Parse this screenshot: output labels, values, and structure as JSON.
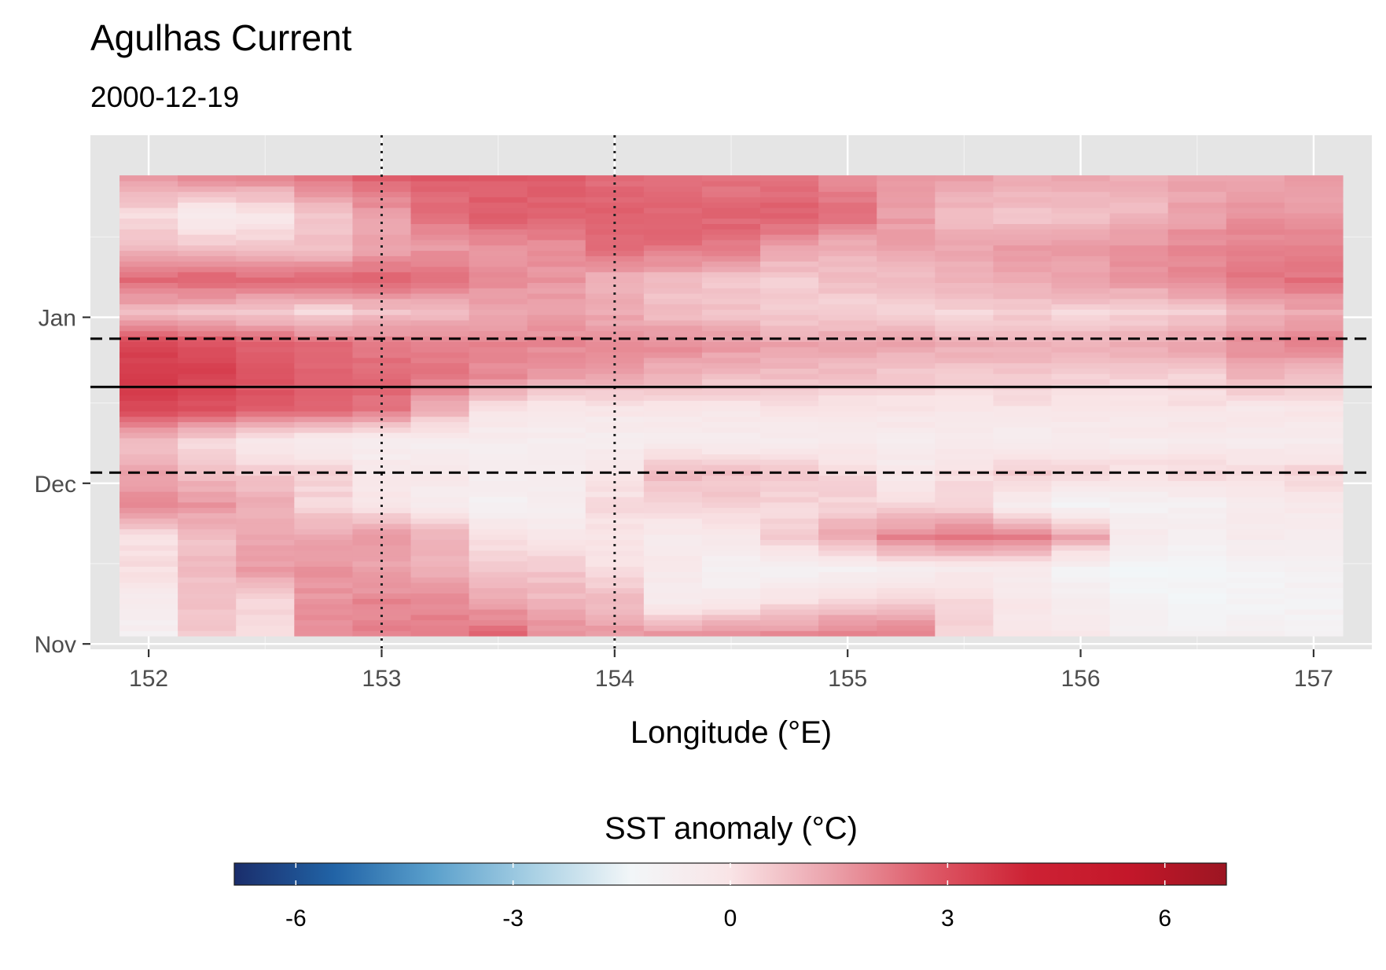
{
  "chart_data": {
    "type": "heatmap",
    "title": "Agulhas Current",
    "subtitle": "2000-12-19",
    "xlabel": "Longitude (°E)",
    "ylabel": "",
    "xlim": [
      151.75,
      157.25
    ],
    "x_ticks": [
      152,
      153,
      154,
      155,
      156,
      157
    ],
    "x_tick_labels": [
      "152",
      "153",
      "154",
      "155",
      "156",
      "157"
    ],
    "y_ticks": [
      {
        "date": "2000-11-01",
        "label": "Nov"
      },
      {
        "date": "2000-12-01",
        "label": "Dec"
      },
      {
        "date": "2001-01-01",
        "label": "Jan"
      }
    ],
    "ylim_dates": [
      "2000-10-31",
      "2001-02-04"
    ],
    "x": [
      152.0,
      152.25,
      152.5,
      152.75,
      153.0,
      153.25,
      153.5,
      153.75,
      154.0,
      154.25,
      154.5,
      154.75,
      155.0,
      155.25,
      155.5,
      155.75,
      156.0,
      156.25,
      156.5,
      156.75,
      157.0
    ],
    "time_start": "2000-11-03",
    "time_end": "2001-01-27",
    "band_values": [
      {
        "t": "2000-11-03",
        "v": [
          -0.8,
          0.6,
          0.3,
          1.8,
          2.0,
          2.2,
          2.4,
          1.8,
          1.5,
          1.5,
          1.6,
          1.8,
          2.0,
          2.0,
          0.3,
          -0.1,
          -0.4,
          -0.9,
          -1.0,
          -0.9,
          -0.9
        ]
      },
      {
        "t": "2000-11-09",
        "v": [
          -0.5,
          0.7,
          0.2,
          1.6,
          1.9,
          1.8,
          1.4,
          1.0,
          0.9,
          -0.5,
          -0.3,
          0.0,
          0.4,
          0.5,
          0.3,
          -0.2,
          -0.6,
          -1.1,
          -1.2,
          -1.1,
          -1.0
        ]
      },
      {
        "t": "2000-11-15",
        "v": [
          0.1,
          0.9,
          1.5,
          1.7,
          1.4,
          1.0,
          0.5,
          0.6,
          0.2,
          -0.4,
          -1.0,
          -1.0,
          -0.8,
          -0.6,
          -0.4,
          -0.5,
          -1.1,
          -1.4,
          -1.3,
          -1.1,
          -0.9
        ]
      },
      {
        "t": "2000-11-21",
        "v": [
          0.0,
          0.7,
          1.2,
          1.4,
          1.6,
          1.1,
          0.0,
          -0.3,
          -0.2,
          -0.4,
          -0.3,
          0.5,
          1.3,
          2.0,
          2.3,
          2.0,
          1.3,
          -0.4,
          -0.7,
          -0.5,
          -0.5
        ]
      },
      {
        "t": "2000-11-27",
        "v": [
          2.0,
          1.6,
          1.2,
          0.3,
          -0.2,
          -0.6,
          -0.9,
          -0.7,
          0.2,
          0.3,
          0.4,
          0.3,
          0.4,
          0.3,
          0.3,
          -0.6,
          -1.1,
          -1.0,
          -0.9,
          -0.6,
          -0.4
        ]
      },
      {
        "t": "2000-12-03",
        "v": [
          1.3,
          0.8,
          0.6,
          0.4,
          -0.3,
          -0.4,
          -0.6,
          -0.5,
          -0.2,
          0.9,
          0.8,
          0.6,
          0.3,
          -0.3,
          0.2,
          0.5,
          0.3,
          0.2,
          0.3,
          0.1,
          0.4
        ]
      },
      {
        "t": "2000-12-09",
        "v": [
          0.7,
          0.2,
          -0.4,
          -0.6,
          -0.7,
          -0.7,
          -0.7,
          -0.7,
          -0.6,
          -0.6,
          -0.7,
          -0.6,
          -0.5,
          -0.5,
          -0.5,
          -0.6,
          -0.5,
          -0.5,
          -0.5,
          -0.5,
          -0.5
        ]
      },
      {
        "t": "2000-12-15",
        "v": [
          3.2,
          3.0,
          2.8,
          2.7,
          2.3,
          1.2,
          0.0,
          -0.2,
          -0.2,
          -0.2,
          -0.1,
          -0.1,
          -0.1,
          -0.1,
          -0.1,
          -0.1,
          -0.1,
          -0.2,
          0.0,
          -0.2,
          -0.1
        ]
      },
      {
        "t": "2000-12-21",
        "v": [
          3.6,
          3.3,
          2.8,
          2.6,
          2.5,
          2.2,
          1.8,
          1.5,
          1.3,
          1.0,
          0.8,
          0.8,
          0.7,
          0.6,
          0.5,
          0.6,
          0.5,
          0.4,
          0.4,
          1.0,
          0.8
        ]
      },
      {
        "t": "2000-12-27",
        "v": [
          3.2,
          3.0,
          2.7,
          2.4,
          2.2,
          2.0,
          1.9,
          1.9,
          1.8,
          1.8,
          1.6,
          1.4,
          1.4,
          1.3,
          1.2,
          1.2,
          1.1,
          1.2,
          1.4,
          1.8,
          2.0
        ]
      },
      {
        "t": "2001-01-02",
        "v": [
          0.9,
          0.6,
          0.4,
          0.2,
          0.6,
          0.9,
          1.2,
          1.4,
          1.2,
          0.8,
          0.7,
          0.4,
          0.4,
          0.4,
          0.3,
          0.4,
          0.3,
          0.3,
          0.5,
          0.9,
          1.2
        ]
      },
      {
        "t": "2001-01-08",
        "v": [
          2.5,
          2.6,
          2.5,
          2.5,
          2.6,
          2.2,
          1.8,
          1.6,
          1.0,
          0.8,
          0.6,
          0.5,
          0.7,
          0.8,
          1.1,
          1.3,
          1.4,
          1.6,
          1.9,
          2.2,
          2.3
        ]
      },
      {
        "t": "2001-01-14",
        "v": [
          1.0,
          0.8,
          0.6,
          0.7,
          1.3,
          1.6,
          1.6,
          1.7,
          2.5,
          2.3,
          2.1,
          1.4,
          1.1,
          1.3,
          1.3,
          1.5,
          1.5,
          1.7,
          1.9,
          2.0,
          2.0
        ]
      },
      {
        "t": "2001-01-20",
        "v": [
          0.2,
          -0.6,
          -0.3,
          0.6,
          1.4,
          2.2,
          2.7,
          2.7,
          2.7,
          2.6,
          2.6,
          2.7,
          2.3,
          1.5,
          0.8,
          0.6,
          0.7,
          0.9,
          1.4,
          1.7,
          1.6
        ]
      },
      {
        "t": "2001-01-27",
        "v": [
          1.6,
          1.8,
          1.8,
          2.2,
          2.6,
          2.7,
          2.7,
          2.6,
          2.4,
          2.3,
          2.2,
          2.1,
          1.9,
          1.7,
          1.4,
          1.3,
          1.2,
          1.2,
          1.3,
          1.4,
          1.5
        ]
      }
    ],
    "reference_lines": {
      "solid_horizontal_date": "2000-12-19",
      "dashed_horizontal_dates": [
        "2000-12-03",
        "2000-12-28"
      ],
      "dotted_vertical_lon": [
        153,
        154
      ]
    },
    "legend": {
      "title": "SST anomaly (°C)",
      "position": "bottom",
      "range": [
        -6.85,
        6.85
      ],
      "ticks": [
        -6,
        -3,
        0,
        3,
        6
      ],
      "tick_labels": [
        "-6",
        "-3",
        "0",
        "3",
        "6"
      ],
      "colors": [
        "#1a2d6b",
        "#2163a6",
        "#5aa0cc",
        "#a8d0e4",
        "#f2f6f8",
        "#f9e4e6",
        "#eba3ac",
        "#de5a68",
        "#cd2234",
        "#c4172a",
        "#9c1522"
      ]
    },
    "grid": true,
    "panel_background": "#e5e5e5"
  }
}
